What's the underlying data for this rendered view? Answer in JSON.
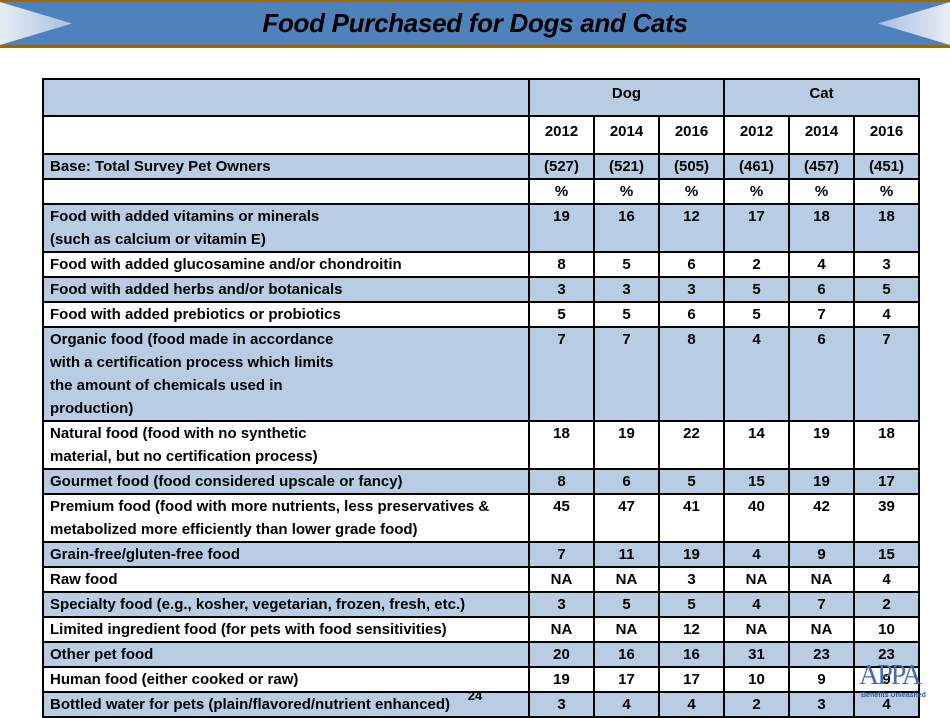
{
  "page": {
    "title": "Food Purchased for Dogs and Cats",
    "page_number": "24",
    "logo": {
      "letters": "APPA",
      "tagline": "Benefits Unleashed"
    }
  },
  "table": {
    "groups": [
      {
        "label": "Dog"
      },
      {
        "label": "Cat"
      }
    ],
    "years": [
      "2012",
      "2014",
      "2016",
      "2012",
      "2014",
      "2016"
    ],
    "base": {
      "label": "Base: Total Survey Pet Owners",
      "values": [
        "(527)",
        "(521)",
        "(505)",
        "(461)",
        "(457)",
        "(451)"
      ]
    },
    "units": [
      "%",
      "%",
      "%",
      "%",
      "%",
      "%"
    ],
    "rows": [
      {
        "label": "Food with added vitamins or minerals (such as calcium or vitamin E)",
        "values": [
          "19",
          "16",
          "12",
          "17",
          "18",
          "18"
        ]
      },
      {
        "label": "Food with added glucosamine and/or chondroitin",
        "values": [
          "8",
          "5",
          "6",
          "2",
          "4",
          "3"
        ]
      },
      {
        "label": "Food with added herbs and/or botanicals",
        "values": [
          "3",
          "3",
          "3",
          "5",
          "6",
          "5"
        ]
      },
      {
        "label": "Food with added prebiotics or probiotics",
        "values": [
          "5",
          "5",
          "6",
          "5",
          "7",
          "4"
        ]
      },
      {
        "label": "Organic food (food made in accordance with a certification process which limits the amount of chemicals used in production)",
        "values": [
          "7",
          "7",
          "8",
          "4",
          "6",
          "7"
        ]
      },
      {
        "label": "Natural food (food with no synthetic material, but no certification process)",
        "values": [
          "18",
          "19",
          "22",
          "14",
          "19",
          "18"
        ]
      },
      {
        "label": "Gourmet food (food considered upscale or fancy)",
        "values": [
          "8",
          "6",
          "5",
          "15",
          "19",
          "17"
        ]
      },
      {
        "label": "Premium food (food with more nutrients, less preservatives & metabolized more efficiently than lower grade food)",
        "values": [
          "45",
          "47",
          "41",
          "40",
          "42",
          "39"
        ]
      },
      {
        "label": "Grain-free/gluten-free food",
        "values": [
          "7",
          "11",
          "19",
          "4",
          "9",
          "15"
        ]
      },
      {
        "label": "Raw food",
        "values": [
          "NA",
          "NA",
          "3",
          "NA",
          "NA",
          "4"
        ]
      },
      {
        "label": "Specialty food (e.g., kosher, vegetarian, frozen, fresh, etc.)",
        "values": [
          "3",
          "5",
          "5",
          "4",
          "7",
          "2"
        ]
      },
      {
        "label": "Limited ingredient food (for pets with food sensitivities)",
        "values": [
          "NA",
          "NA",
          "12",
          "NA",
          "NA",
          "10"
        ]
      },
      {
        "label": "Other pet food",
        "values": [
          "20",
          "16",
          "16",
          "31",
          "23",
          "23"
        ]
      },
      {
        "label": "Human food (either cooked or raw)",
        "values": [
          "19",
          "17",
          "17",
          "10",
          "9",
          "9"
        ]
      },
      {
        "label": "Bottled water for pets (plain/flavored/nutrient enhanced)",
        "values": [
          "3",
          "4",
          "4",
          "2",
          "3",
          "4"
        ]
      }
    ]
  },
  "colors": {
    "banner": "#4f81bd",
    "banner_border": "#9a6a00",
    "row_blue": "#b8cce4",
    "row_white": "#ffffff"
  }
}
